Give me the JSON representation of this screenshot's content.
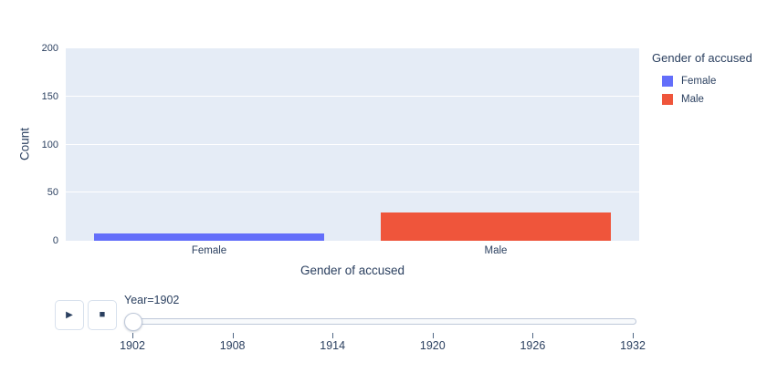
{
  "chart_data": {
    "type": "bar",
    "title": "",
    "xlabel": "Gender of accused",
    "ylabel": "Count",
    "categories": [
      "Female",
      "Male"
    ],
    "values": [
      8,
      29
    ],
    "bar_colors": [
      "#636EFA",
      "#EF553B"
    ],
    "ylim": [
      0,
      200
    ],
    "yticks": [
      0,
      50,
      100,
      150,
      200
    ],
    "grid": true,
    "gridcolor": "#FFFFFF",
    "plot_bgcolor": "#E5ECF6",
    "legend": {
      "position": "right",
      "title": "Gender of accused",
      "items": [
        {
          "label": "Female",
          "color": "#636EFA"
        },
        {
          "label": "Male",
          "color": "#EF553B"
        }
      ]
    }
  },
  "animation_controls": {
    "play_icon": "▶",
    "stop_icon": "■"
  },
  "slider": {
    "current_value": "Year=1902",
    "tick_labels": [
      "1902",
      "1908",
      "1914",
      "1920",
      "1926",
      "1932"
    ]
  },
  "colors": {
    "text": "#2A3F5F",
    "female_bar": "#636EFA",
    "male_bar": "#EF553B",
    "plot_background": "#E5ECF6",
    "slider_border": "#BEC8D9"
  }
}
